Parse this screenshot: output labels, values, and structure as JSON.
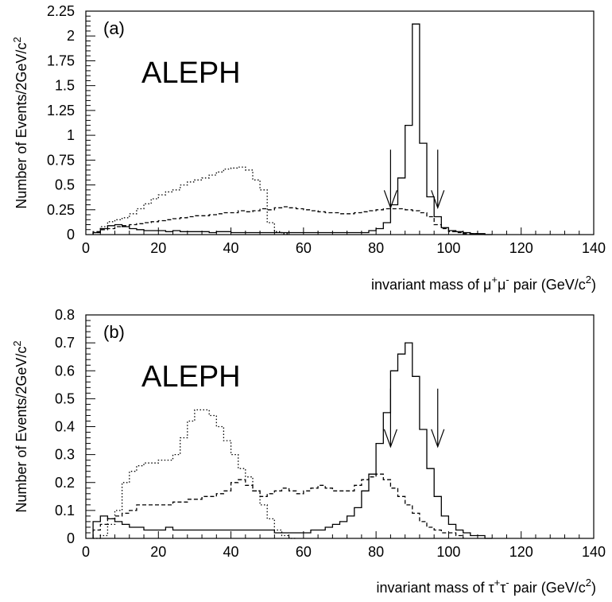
{
  "chart_data": [
    {
      "type": "line",
      "panel_label": "(a)",
      "annotation": "ALEPH",
      "ylabel": "Number of Events/2GeV/c",
      "ylabel_sup": "2",
      "xlabel_parts": [
        {
          "t": "invariant mass of μ",
          "s": false
        },
        {
          "t": "+",
          "s": true
        },
        {
          "t": "μ",
          "s": false
        },
        {
          "t": "-",
          "s": true
        },
        {
          "t": " pair (GeV/c",
          "s": false
        },
        {
          "t": "2",
          "s": true
        },
        {
          "t": ")",
          "s": false
        }
      ],
      "xlim": [
        0,
        140
      ],
      "ylim": [
        0,
        2.25
      ],
      "xticks": [
        0,
        20,
        40,
        60,
        80,
        100,
        120,
        140
      ],
      "yticks": [
        0,
        0.25,
        0.5,
        0.75,
        1,
        1.25,
        1.5,
        1.75,
        2,
        2.25
      ],
      "ytick_labels": [
        "0",
        "0.25",
        "0.5",
        "0.75",
        "1",
        "1.25",
        "1.5",
        "1.75",
        "2",
        "2.25"
      ],
      "bin_edges_start": 2,
      "bin_width": 2,
      "series": [
        {
          "style": "solid",
          "values": [
            0.02,
            0.06,
            0.09,
            0.1,
            0.08,
            0.06,
            0.05,
            0.04,
            0.04,
            0.04,
            0.03,
            0.04,
            0.03,
            0.03,
            0.03,
            0.03,
            0.02,
            0.03,
            0.03,
            0.02,
            0.02,
            0.02,
            0.02,
            0.02,
            0.02,
            0.02,
            0.02,
            0.02,
            0.02,
            0.02,
            0.02,
            0.02,
            0.02,
            0.02,
            0.02,
            0.02,
            0.02,
            0.02,
            0.04,
            0.06,
            0.12,
            0.3,
            0.57,
            1.1,
            2.12,
            0.92,
            0.38,
            0.18,
            0.07,
            0.04,
            0.03,
            0.02,
            0.01,
            0.01,
            0.0
          ]
        },
        {
          "style": "dotted",
          "values": [
            0.02,
            0.08,
            0.13,
            0.15,
            0.17,
            0.21,
            0.26,
            0.31,
            0.36,
            0.4,
            0.43,
            0.45,
            0.5,
            0.53,
            0.55,
            0.57,
            0.6,
            0.63,
            0.66,
            0.67,
            0.68,
            0.65,
            0.55,
            0.45,
            0.12,
            0.03,
            0.01
          ]
        },
        {
          "style": "dashed",
          "values": [
            0.03,
            0.05,
            0.06,
            0.08,
            0.09,
            0.1,
            0.11,
            0.12,
            0.13,
            0.14,
            0.15,
            0.16,
            0.17,
            0.18,
            0.19,
            0.19,
            0.2,
            0.21,
            0.22,
            0.22,
            0.24,
            0.23,
            0.24,
            0.26,
            0.25,
            0.27,
            0.28,
            0.27,
            0.26,
            0.25,
            0.24,
            0.23,
            0.22,
            0.22,
            0.21,
            0.21,
            0.22,
            0.23,
            0.24,
            0.25,
            0.26,
            0.26,
            0.26,
            0.25,
            0.24,
            0.22,
            0.18,
            0.1,
            0.06,
            0.03,
            0.02,
            0.01,
            0.01
          ]
        }
      ],
      "arrows": [
        84,
        97
      ]
    },
    {
      "type": "line",
      "panel_label": "(b)",
      "annotation": "ALEPH",
      "ylabel": "Number of Events/2GeV/c",
      "ylabel_sup": "2",
      "xlabel_parts": [
        {
          "t": "invariant mass of τ",
          "s": false
        },
        {
          "t": "+",
          "s": true
        },
        {
          "t": "τ",
          "s": false
        },
        {
          "t": "-",
          "s": true
        },
        {
          "t": " pair (GeV/c",
          "s": false
        },
        {
          "t": "2",
          "s": true
        },
        {
          "t": ")",
          "s": false
        }
      ],
      "xlim": [
        0,
        140
      ],
      "ylim": [
        0,
        0.8
      ],
      "xticks": [
        0,
        20,
        40,
        60,
        80,
        100,
        120,
        140
      ],
      "yticks": [
        0,
        0.1,
        0.2,
        0.3,
        0.4,
        0.5,
        0.6,
        0.7,
        0.8
      ],
      "ytick_labels": [
        "0",
        "0.1",
        "0.2",
        "0.3",
        "0.4",
        "0.5",
        "0.6",
        "0.7",
        "0.8"
      ],
      "bin_edges_start": 2,
      "bin_width": 2,
      "series": [
        {
          "style": "solid",
          "values": [
            0.06,
            0.08,
            0.07,
            0.06,
            0.05,
            0.04,
            0.04,
            0.03,
            0.03,
            0.03,
            0.04,
            0.03,
            0.03,
            0.03,
            0.03,
            0.03,
            0.03,
            0.03,
            0.03,
            0.03,
            0.03,
            0.03,
            0.03,
            0.03,
            0.03,
            0.02,
            0.02,
            0.02,
            0.02,
            0.02,
            0.03,
            0.03,
            0.04,
            0.05,
            0.06,
            0.08,
            0.11,
            0.17,
            0.23,
            0.34,
            0.45,
            0.6,
            0.66,
            0.7,
            0.58,
            0.39,
            0.25,
            0.15,
            0.08,
            0.05,
            0.03,
            0.02,
            0.01,
            0.01,
            0.0
          ]
        },
        {
          "style": "dotted",
          "values": [
            0.0,
            0.01,
            0.05,
            0.1,
            0.2,
            0.24,
            0.26,
            0.27,
            0.27,
            0.28,
            0.28,
            0.3,
            0.36,
            0.42,
            0.46,
            0.46,
            0.44,
            0.4,
            0.35,
            0.3,
            0.25,
            0.22,
            0.17,
            0.12,
            0.07,
            0.03,
            0.01,
            0.0
          ]
        },
        {
          "style": "dashed",
          "values": [
            0.03,
            0.05,
            0.07,
            0.08,
            0.09,
            0.1,
            0.12,
            0.12,
            0.12,
            0.12,
            0.12,
            0.13,
            0.13,
            0.14,
            0.14,
            0.15,
            0.15,
            0.16,
            0.17,
            0.2,
            0.21,
            0.19,
            0.17,
            0.15,
            0.16,
            0.17,
            0.18,
            0.17,
            0.16,
            0.17,
            0.18,
            0.19,
            0.18,
            0.17,
            0.17,
            0.17,
            0.19,
            0.21,
            0.22,
            0.23,
            0.21,
            0.18,
            0.15,
            0.12,
            0.09,
            0.06,
            0.04,
            0.03,
            0.02,
            0.02,
            0.01
          ]
        }
      ],
      "arrows": [
        84,
        97
      ]
    }
  ]
}
